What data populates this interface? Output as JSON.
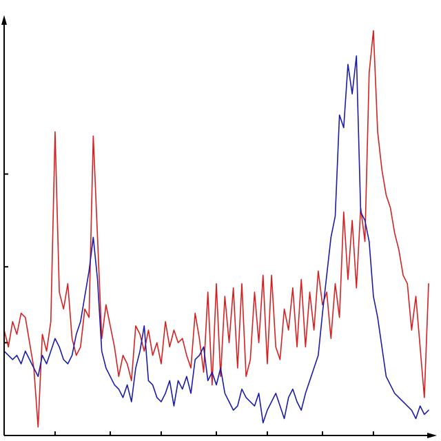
{
  "chart_data": {
    "type": "line",
    "title": "",
    "xlabel": "",
    "ylabel": "",
    "grid": false,
    "legend": "none",
    "xlim": [
      0,
      100
    ],
    "ylim": [
      0,
      100
    ],
    "x_ticks": [
      12,
      25,
      37,
      50,
      62,
      75,
      87
    ],
    "y_ticks": [
      22,
      40,
      62
    ],
    "series": [
      {
        "color": "#d42020",
        "x": [
          0,
          1,
          2,
          3,
          4,
          5,
          6,
          7,
          8,
          9,
          10,
          11,
          12,
          13,
          14,
          15,
          16,
          17,
          18,
          19,
          20,
          21,
          22,
          23,
          24,
          25,
          26,
          27,
          28,
          29,
          30,
          31,
          32,
          33,
          34,
          35,
          36,
          37,
          38,
          39,
          40,
          41,
          42,
          43,
          44,
          45,
          46,
          47,
          48,
          49,
          50,
          51,
          52,
          53,
          54,
          55,
          56,
          57,
          58,
          59,
          60,
          61,
          62,
          63,
          64,
          65,
          66,
          67,
          68,
          69,
          70,
          71,
          72,
          73,
          74,
          75,
          76,
          77,
          78,
          79,
          80,
          81,
          82,
          83,
          84,
          85,
          86,
          87,
          88,
          89,
          90,
          91,
          92,
          93,
          94,
          95,
          96,
          97,
          98,
          99,
          100
        ],
        "values": [
          25,
          21,
          27,
          24,
          29,
          28,
          22,
          16,
          2,
          24,
          20,
          27,
          72,
          34,
          30,
          36,
          23,
          19,
          21,
          30,
          28,
          71,
          47,
          23,
          31,
          26,
          21,
          14,
          19,
          17,
          13,
          26,
          24,
          20,
          25,
          19,
          22,
          17,
          27,
          21,
          25,
          22,
          23,
          19,
          16,
          29,
          23,
          15,
          34,
          12,
          36,
          14,
          33,
          22,
          35,
          16,
          36,
          14,
          18,
          34,
          22,
          38,
          17,
          38,
          21,
          18,
          30,
          25,
          35,
          21,
          37,
          21,
          34,
          25,
          39,
          31,
          34,
          23,
          36,
          28,
          53,
          37,
          51,
          35,
          54,
          46,
          86,
          96,
          72,
          63,
          57,
          54,
          48,
          44,
          38,
          36,
          25,
          33,
          21,
          9,
          36
        ]
      },
      {
        "color": "#1a1aa8",
        "x": [
          0,
          1,
          2,
          3,
          4,
          5,
          6,
          7,
          8,
          9,
          10,
          11,
          12,
          13,
          14,
          15,
          16,
          17,
          18,
          19,
          20,
          21,
          22,
          23,
          24,
          25,
          26,
          27,
          28,
          29,
          30,
          31,
          32,
          33,
          34,
          35,
          36,
          37,
          38,
          39,
          40,
          41,
          42,
          43,
          44,
          45,
          46,
          47,
          48,
          49,
          50,
          51,
          52,
          53,
          54,
          55,
          56,
          57,
          58,
          59,
          60,
          61,
          62,
          63,
          64,
          65,
          66,
          67,
          68,
          69,
          70,
          71,
          72,
          73,
          74,
          75,
          76,
          77,
          78,
          79,
          80,
          81,
          82,
          83,
          84,
          85,
          86,
          87,
          88,
          89,
          90,
          91,
          92,
          93,
          94,
          95,
          96,
          97,
          98,
          99,
          100
        ],
        "values": [
          20,
          19,
          18,
          19,
          17,
          20,
          18,
          16,
          14,
          19,
          17,
          20,
          23,
          21,
          18,
          17,
          19,
          24,
          27,
          33,
          39,
          47,
          37,
          20,
          16,
          14,
          12,
          11,
          9,
          12,
          8,
          16,
          20,
          26,
          13,
          12,
          9,
          8,
          10,
          13,
          7,
          13,
          11,
          14,
          10,
          18,
          19,
          21,
          13,
          15,
          12,
          16,
          10,
          8,
          6,
          7,
          11,
          9,
          8,
          7,
          10,
          3,
          6,
          8,
          10,
          7,
          4,
          9,
          11,
          8,
          6,
          10,
          13,
          16,
          19,
          29,
          38,
          47,
          52,
          76,
          73,
          88,
          81,
          90,
          53,
          51,
          46,
          33,
          28,
          21,
          14,
          12,
          10,
          9,
          8,
          7,
          6,
          4,
          7,
          5,
          6
        ]
      }
    ]
  }
}
